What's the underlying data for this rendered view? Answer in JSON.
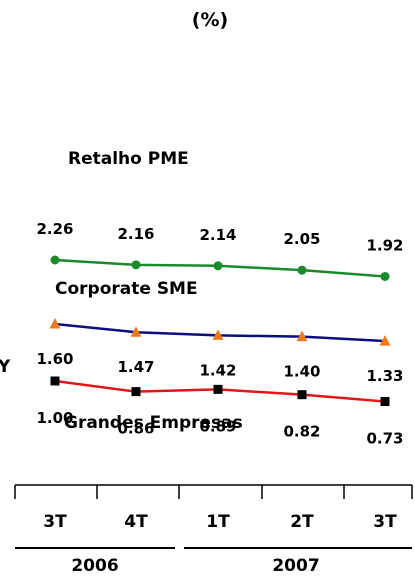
{
  "chart_data": {
    "type": "line",
    "title": "(%)",
    "categories": [
      "3T",
      "4T",
      "1T",
      "2T",
      "3T"
    ],
    "year_groups": [
      {
        "label": "2006"
      },
      {
        "label": "2007"
      }
    ],
    "series": [
      {
        "name": "Retalho PME",
        "color": "#1a8a2a",
        "marker": "circle",
        "values": [
          2.26,
          2.16,
          2.14,
          2.05,
          1.92
        ],
        "labels": [
          "2.26",
          "2.16",
          "2.14",
          "2.05",
          "1.92"
        ]
      },
      {
        "name": "Corporate SME",
        "color": "#0b0f80",
        "marker": "triangle",
        "marker_color": "#f07a1a",
        "values": [
          1.6,
          1.47,
          1.42,
          1.4,
          1.33
        ],
        "labels": [
          "1.60",
          "1.47",
          "1.42",
          "1.40",
          "1.33"
        ]
      },
      {
        "name": "Grandes Empresas",
        "color": "#e01818",
        "marker": "square",
        "marker_color": "#000000",
        "values": [
          1.0,
          0.86,
          0.89,
          0.82,
          0.73
        ],
        "labels": [
          "1.00",
          "0.86",
          "0.89",
          "0.82",
          "0.73"
        ]
      }
    ],
    "grid": false,
    "legend": "inline"
  },
  "y_axis_glyph": "Y"
}
